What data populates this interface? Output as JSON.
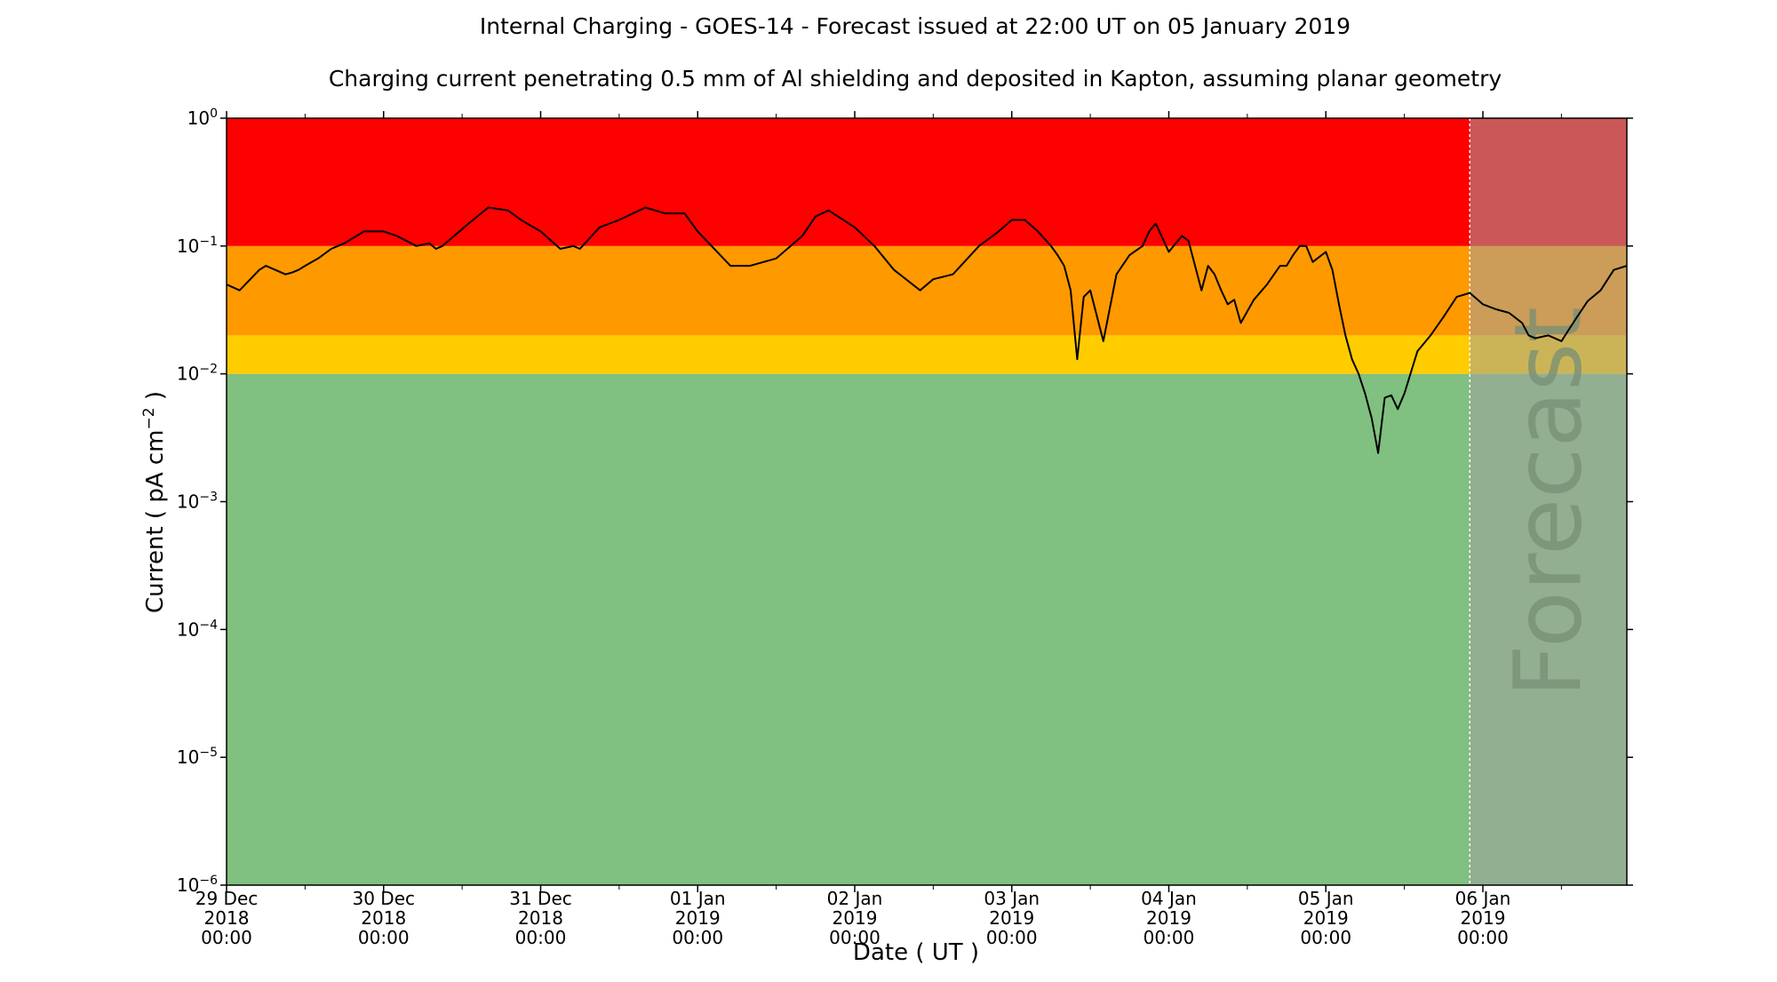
{
  "chart_data": {
    "type": "line",
    "title": "Internal Charging - GOES-14 - Forecast issued at 22:00 UT on 05 January 2019",
    "subtitle": "Charging current penetrating 0.5 mm of Al shielding and deposited in Kapton, assuming planar geometry",
    "xlabel": "Date ( UT )",
    "ylabel_prefix": "Current ( pA cm",
    "ylabel_exponent": "−2",
    "ylabel_suffix": " )",
    "y_scale": "log",
    "ylim": [
      1e-06,
      1
    ],
    "xlim": [
      "2018-12-29 00:00",
      "2019-01-06 22:00"
    ],
    "forecast_start": "2019-01-05 22:00",
    "forecast_label": "Forecast",
    "grid": false,
    "bands": [
      {
        "from": 1e-06,
        "to": 0.01,
        "color": "#80c080"
      },
      {
        "from": 0.01,
        "to": 0.02,
        "color": "#ffcc00"
      },
      {
        "from": 0.02,
        "to": 0.1,
        "color": "#ff9900"
      },
      {
        "from": 0.1,
        "to": 1,
        "color": "#ff0000"
      }
    ],
    "forecast_overlay_color": "#a0a0a0",
    "line_color": "#000000",
    "y_ticks": [
      {
        "value": 1,
        "base": "10",
        "exp": "0"
      },
      {
        "value": 0.1,
        "base": "10",
        "exp": "−1"
      },
      {
        "value": 0.01,
        "base": "10",
        "exp": "−2"
      },
      {
        "value": 0.001,
        "base": "10",
        "exp": "−3"
      },
      {
        "value": 0.0001,
        "base": "10",
        "exp": "−4"
      },
      {
        "value": 1e-05,
        "base": "10",
        "exp": "−5"
      },
      {
        "value": 1e-06,
        "base": "10",
        "exp": "−6"
      }
    ],
    "x_ticks": [
      {
        "date": "2018-12-29 00:00",
        "lines": [
          "29 Dec",
          "2018",
          "00:00"
        ]
      },
      {
        "date": "2018-12-30 00:00",
        "lines": [
          "30 Dec",
          "2018",
          "00:00"
        ]
      },
      {
        "date": "2018-12-31 00:00",
        "lines": [
          "31 Dec",
          "2018",
          "00:00"
        ]
      },
      {
        "date": "2019-01-01 00:00",
        "lines": [
          "01 Jan",
          "2019",
          "00:00"
        ]
      },
      {
        "date": "2019-01-02 00:00",
        "lines": [
          "02 Jan",
          "2019",
          "00:00"
        ]
      },
      {
        "date": "2019-01-03 00:00",
        "lines": [
          "03 Jan",
          "2019",
          "00:00"
        ]
      },
      {
        "date": "2019-01-04 00:00",
        "lines": [
          "04 Jan",
          "2019",
          "00:00"
        ]
      },
      {
        "date": "2019-01-05 00:00",
        "lines": [
          "05 Jan",
          "2019",
          "00:00"
        ]
      },
      {
        "date": "2019-01-06 00:00",
        "lines": [
          "06 Jan",
          "2019",
          "00:00"
        ]
      }
    ],
    "x_minor_ticks": [
      "2018-12-29 12:00",
      "2018-12-30 12:00",
      "2018-12-31 12:00",
      "2019-01-01 12:00",
      "2019-01-02 12:00",
      "2019-01-03 12:00",
      "2019-01-04 12:00",
      "2019-01-05 12:00",
      "2019-01-06 12:00"
    ],
    "series": [
      {
        "x": [
          "2018-12-29 00:00",
          "2018-12-29 02:00",
          "2018-12-29 05:00",
          "2018-12-29 06:00",
          "2018-12-29 09:00",
          "2018-12-29 10:00",
          "2018-12-29 11:00",
          "2018-12-29 12:00",
          "2018-12-29 14:00",
          "2018-12-29 16:00",
          "2018-12-29 18:00",
          "2018-12-29 21:00",
          "2018-12-30 00:00",
          "2018-12-30 02:00",
          "2018-12-30 05:00",
          "2018-12-30 07:00",
          "2018-12-30 08:00",
          "2018-12-30 09:00",
          "2018-12-30 13:00",
          "2018-12-30 16:00",
          "2018-12-30 19:00",
          "2018-12-30 21:00",
          "2018-12-31 00:00",
          "2018-12-31 03:00",
          "2018-12-31 05:00",
          "2018-12-31 06:00",
          "2018-12-31 09:00",
          "2018-12-31 12:00",
          "2018-12-31 16:00",
          "2018-12-31 19:00",
          "2018-12-31 22:00",
          "2019-01-01 00:00",
          "2019-01-01 05:00",
          "2019-01-01 08:00",
          "2019-01-01 12:00",
          "2019-01-01 16:00",
          "2019-01-01 18:00",
          "2019-01-01 20:00",
          "2019-01-02 00:00",
          "2019-01-02 03:00",
          "2019-01-02 06:00",
          "2019-01-02 10:00",
          "2019-01-02 12:00",
          "2019-01-02 15:00",
          "2019-01-02 19:00",
          "2019-01-02 22:00",
          "2019-01-03 00:00",
          "2019-01-03 02:00",
          "2019-01-03 04:00",
          "2019-01-03 06:00",
          "2019-01-03 07:00",
          "2019-01-03 08:00",
          "2019-01-03 09:00",
          "2019-01-03 10:00",
          "2019-01-03 11:00",
          "2019-01-03 12:00",
          "2019-01-03 14:00",
          "2019-01-03 16:00",
          "2019-01-03 18:00",
          "2019-01-03 20:00",
          "2019-01-03 21:00",
          "2019-01-03 22:00",
          "2019-01-04 00:00",
          "2019-01-04 02:00",
          "2019-01-04 03:00",
          "2019-01-04 05:00",
          "2019-01-04 06:00",
          "2019-01-04 07:00",
          "2019-01-04 08:00",
          "2019-01-04 09:00",
          "2019-01-04 10:00",
          "2019-01-04 11:00",
          "2019-01-04 13:00",
          "2019-01-04 15:00",
          "2019-01-04 17:00",
          "2019-01-04 18:00",
          "2019-01-04 19:00",
          "2019-01-04 20:00",
          "2019-01-04 21:00",
          "2019-01-04 22:00",
          "2019-01-05 00:00",
          "2019-01-05 01:00",
          "2019-01-05 02:00",
          "2019-01-05 03:00",
          "2019-01-05 04:00",
          "2019-01-05 05:00",
          "2019-01-05 06:00",
          "2019-01-05 07:00",
          "2019-01-05 08:00",
          "2019-01-05 09:00",
          "2019-01-05 10:00",
          "2019-01-05 11:00",
          "2019-01-05 12:00",
          "2019-01-05 14:00",
          "2019-01-05 16:00",
          "2019-01-05 18:00",
          "2019-01-05 20:00",
          "2019-01-05 22:00",
          "2019-01-06 00:00",
          "2019-01-06 02:00",
          "2019-01-06 04:00",
          "2019-01-06 06:00",
          "2019-01-06 07:00",
          "2019-01-06 08:00",
          "2019-01-06 10:00",
          "2019-01-06 12:00",
          "2019-01-06 14:00",
          "2019-01-06 16:00",
          "2019-01-06 18:00",
          "2019-01-06 20:00",
          "2019-01-06 22:00"
        ],
        "values": [
          0.05,
          0.045,
          0.065,
          0.07,
          0.06,
          0.062,
          0.065,
          0.07,
          0.08,
          0.095,
          0.105,
          0.13,
          0.13,
          0.12,
          0.1,
          0.105,
          0.095,
          0.1,
          0.15,
          0.2,
          0.19,
          0.16,
          0.13,
          0.095,
          0.1,
          0.095,
          0.14,
          0.16,
          0.2,
          0.18,
          0.18,
          0.13,
          0.07,
          0.07,
          0.08,
          0.12,
          0.17,
          0.19,
          0.14,
          0.1,
          0.065,
          0.045,
          0.055,
          0.06,
          0.1,
          0.13,
          0.16,
          0.16,
          0.13,
          0.1,
          0.085,
          0.07,
          0.045,
          0.013,
          0.04,
          0.045,
          0.018,
          0.06,
          0.085,
          0.1,
          0.13,
          0.15,
          0.09,
          0.12,
          0.11,
          0.045,
          0.07,
          0.06,
          0.045,
          0.035,
          0.038,
          0.025,
          0.038,
          0.05,
          0.07,
          0.07,
          0.085,
          0.1,
          0.1,
          0.075,
          0.09,
          0.065,
          0.035,
          0.02,
          0.013,
          0.01,
          0.007,
          0.0045,
          0.0024,
          0.0065,
          0.0068,
          0.0053,
          0.007,
          0.015,
          0.02,
          0.028,
          0.04,
          0.043,
          0.035,
          0.032,
          0.03,
          0.025,
          0.02,
          0.019,
          0.02,
          0.018,
          0.026,
          0.037,
          0.045,
          0.065,
          0.07
        ]
      }
    ]
  }
}
